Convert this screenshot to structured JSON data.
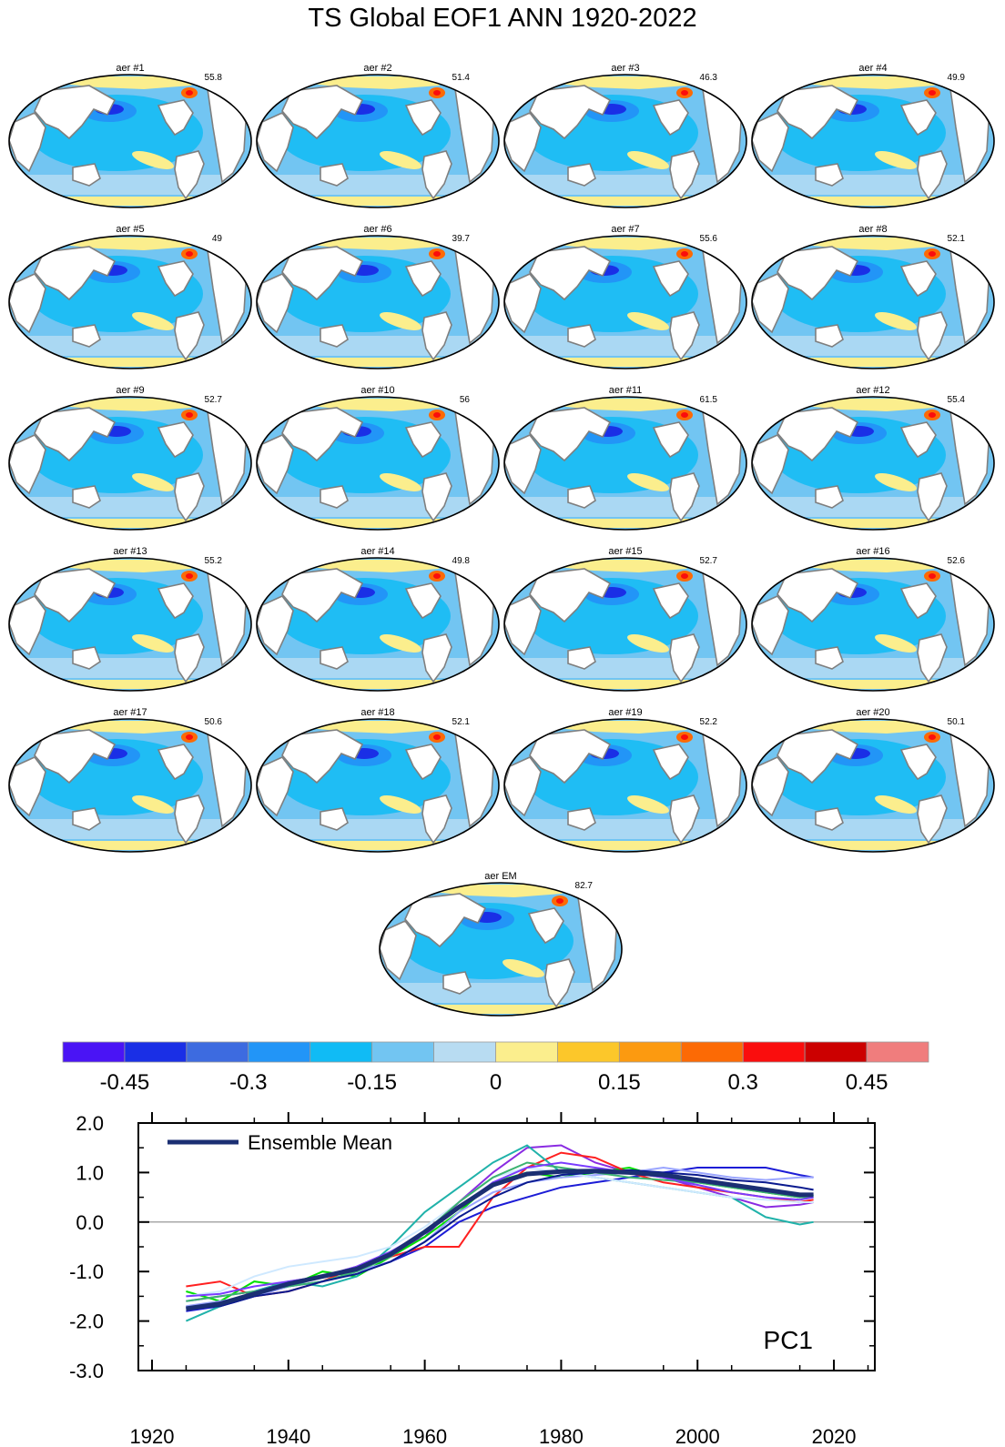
{
  "title": "TS Global EOF1 ANN 1920-2022",
  "colors": {
    "land": "#ffffff",
    "coast": "#7f7f7f",
    "sea_ice": "#fbee8d",
    "ensemble_mean_line": "#1b2f73"
  },
  "maps": [
    {
      "label": "aer #1",
      "pct": "55.8"
    },
    {
      "label": "aer #2",
      "pct": "51.4"
    },
    {
      "label": "aer #3",
      "pct": "46.3"
    },
    {
      "label": "aer #4",
      "pct": "49.9"
    },
    {
      "label": "aer #5",
      "pct": "49"
    },
    {
      "label": "aer #6",
      "pct": "39.7"
    },
    {
      "label": "aer #7",
      "pct": "55.6"
    },
    {
      "label": "aer #8",
      "pct": "52.1"
    },
    {
      "label": "aer #9",
      "pct": "52.7"
    },
    {
      "label": "aer #10",
      "pct": "56"
    },
    {
      "label": "aer #11",
      "pct": "61.5"
    },
    {
      "label": "aer #12",
      "pct": "55.4"
    },
    {
      "label": "aer #13",
      "pct": "55.2"
    },
    {
      "label": "aer #14",
      "pct": "49.8"
    },
    {
      "label": "aer #15",
      "pct": "52.7"
    },
    {
      "label": "aer #16",
      "pct": "52.6"
    },
    {
      "label": "aer #17",
      "pct": "50.6"
    },
    {
      "label": "aer #18",
      "pct": "52.1"
    },
    {
      "label": "aer #19",
      "pct": "52.2"
    },
    {
      "label": "aer #20",
      "pct": "50.1"
    },
    {
      "label": "aer EM",
      "pct": "82.7"
    }
  ],
  "colorbar": {
    "colors": [
      "#4a14f5",
      "#1a2fe6",
      "#3d6be0",
      "#2295f7",
      "#10bbf5",
      "#72c5f2",
      "#b8dcf2",
      "#fbee8d",
      "#fcc72a",
      "#fc9a10",
      "#fc6a05",
      "#fa0d0d",
      "#cc0000",
      "#f07d7d"
    ],
    "tick_labels": [
      "-0.45",
      "-0.3",
      "-0.15",
      "0",
      "0.15",
      "0.3",
      "0.45"
    ]
  },
  "chart_data": {
    "type": "line",
    "annotation": "PC1",
    "legend": {
      "entries": [
        "Ensemble Mean"
      ],
      "placement": "top-left"
    },
    "xlim": [
      1918,
      2026
    ],
    "ylim": [
      -3.0,
      2.0
    ],
    "x_ticks": [
      "1920",
      "1940",
      "1960",
      "1980",
      "2000",
      "2020"
    ],
    "y_ticks": [
      "2.0",
      "1.0",
      "0.0",
      "-1.0",
      "-2.0",
      "-3.0"
    ],
    "reference_line_y": 0.0,
    "ensemble_mean": {
      "name": "Ensemble Mean",
      "x": [
        1925,
        1930,
        1935,
        1940,
        1945,
        1950,
        1955,
        1960,
        1965,
        1970,
        1975,
        1980,
        1985,
        1990,
        1995,
        2000,
        2005,
        2010,
        2015,
        2017
      ],
      "y": [
        -1.75,
        -1.65,
        -1.45,
        -1.25,
        -1.1,
        -0.95,
        -0.65,
        -0.2,
        0.3,
        0.75,
        0.97,
        1.02,
        1.03,
        1.0,
        0.95,
        0.85,
        0.75,
        0.65,
        0.55,
        0.55
      ]
    },
    "members": [
      {
        "color": "#8a2be2",
        "y": [
          -1.6,
          -1.5,
          -1.4,
          -1.2,
          -1.1,
          -0.9,
          -0.6,
          -0.3,
          0.4,
          1.0,
          1.5,
          1.55,
          1.2,
          1.0,
          0.9,
          0.7,
          0.5,
          0.3,
          0.35,
          0.4
        ]
      },
      {
        "color": "#1c1cd6",
        "y": [
          -1.8,
          -1.7,
          -1.5,
          -1.3,
          -1.2,
          -1.0,
          -0.8,
          -0.5,
          0.0,
          0.3,
          0.5,
          0.7,
          0.8,
          0.9,
          1.0,
          1.1,
          1.1,
          1.1,
          0.95,
          0.9
        ]
      },
      {
        "color": "#00e000",
        "y": [
          -1.4,
          -1.6,
          -1.2,
          -1.3,
          -1.0,
          -1.1,
          -0.7,
          -0.3,
          0.2,
          0.8,
          1.0,
          0.9,
          1.0,
          1.1,
          0.9,
          0.8,
          0.7,
          0.6,
          0.5,
          0.55
        ]
      },
      {
        "color": "#ff2020",
        "y": [
          -1.3,
          -1.2,
          -1.5,
          -1.4,
          -1.2,
          -0.9,
          -0.7,
          -0.5,
          -0.5,
          0.5,
          1.1,
          1.4,
          1.3,
          1.0,
          0.8,
          0.7,
          0.6,
          0.5,
          0.4,
          0.45
        ]
      },
      {
        "color": "#20b2aa",
        "y": [
          -2.0,
          -1.7,
          -1.4,
          -1.2,
          -1.3,
          -1.1,
          -0.5,
          0.2,
          0.7,
          1.2,
          1.55,
          1.0,
          0.9,
          0.8,
          0.7,
          0.6,
          0.5,
          0.1,
          -0.05,
          0.0
        ]
      },
      {
        "color": "#9aa5ff",
        "y": [
          -1.7,
          -1.6,
          -1.5,
          -1.3,
          -1.2,
          -1.0,
          -0.8,
          -0.4,
          0.2,
          0.6,
          0.8,
          0.9,
          0.95,
          1.0,
          1.1,
          1.0,
          0.9,
          0.85,
          0.9,
          0.9
        ]
      },
      {
        "color": "#cfe9ff",
        "y": [
          -1.5,
          -1.4,
          -1.1,
          -0.9,
          -0.8,
          -0.7,
          -0.5,
          -0.1,
          0.4,
          0.9,
          1.1,
          1.0,
          0.9,
          0.8,
          0.7,
          0.6,
          0.5,
          0.45,
          0.4,
          0.4
        ]
      },
      {
        "color": "#3cb371",
        "y": [
          -1.6,
          -1.5,
          -1.4,
          -1.3,
          -1.2,
          -1.0,
          -0.7,
          -0.2,
          0.4,
          0.9,
          1.2,
          1.1,
          1.0,
          0.9,
          0.85,
          0.8,
          0.7,
          0.6,
          0.5,
          0.5
        ]
      },
      {
        "color": "#0a1a8f",
        "y": [
          -1.75,
          -1.7,
          -1.5,
          -1.4,
          -1.2,
          -1.05,
          -0.8,
          -0.4,
          0.1,
          0.5,
          0.8,
          0.95,
          1.0,
          1.05,
          1.0,
          0.95,
          0.85,
          0.8,
          0.7,
          0.65
        ]
      },
      {
        "color": "#7a3cff",
        "y": [
          -1.5,
          -1.45,
          -1.3,
          -1.2,
          -1.1,
          -0.9,
          -0.6,
          -0.2,
          0.3,
          0.8,
          1.1,
          1.2,
          1.1,
          1.0,
          0.9,
          0.75,
          0.6,
          0.5,
          0.45,
          0.5
        ]
      }
    ]
  }
}
